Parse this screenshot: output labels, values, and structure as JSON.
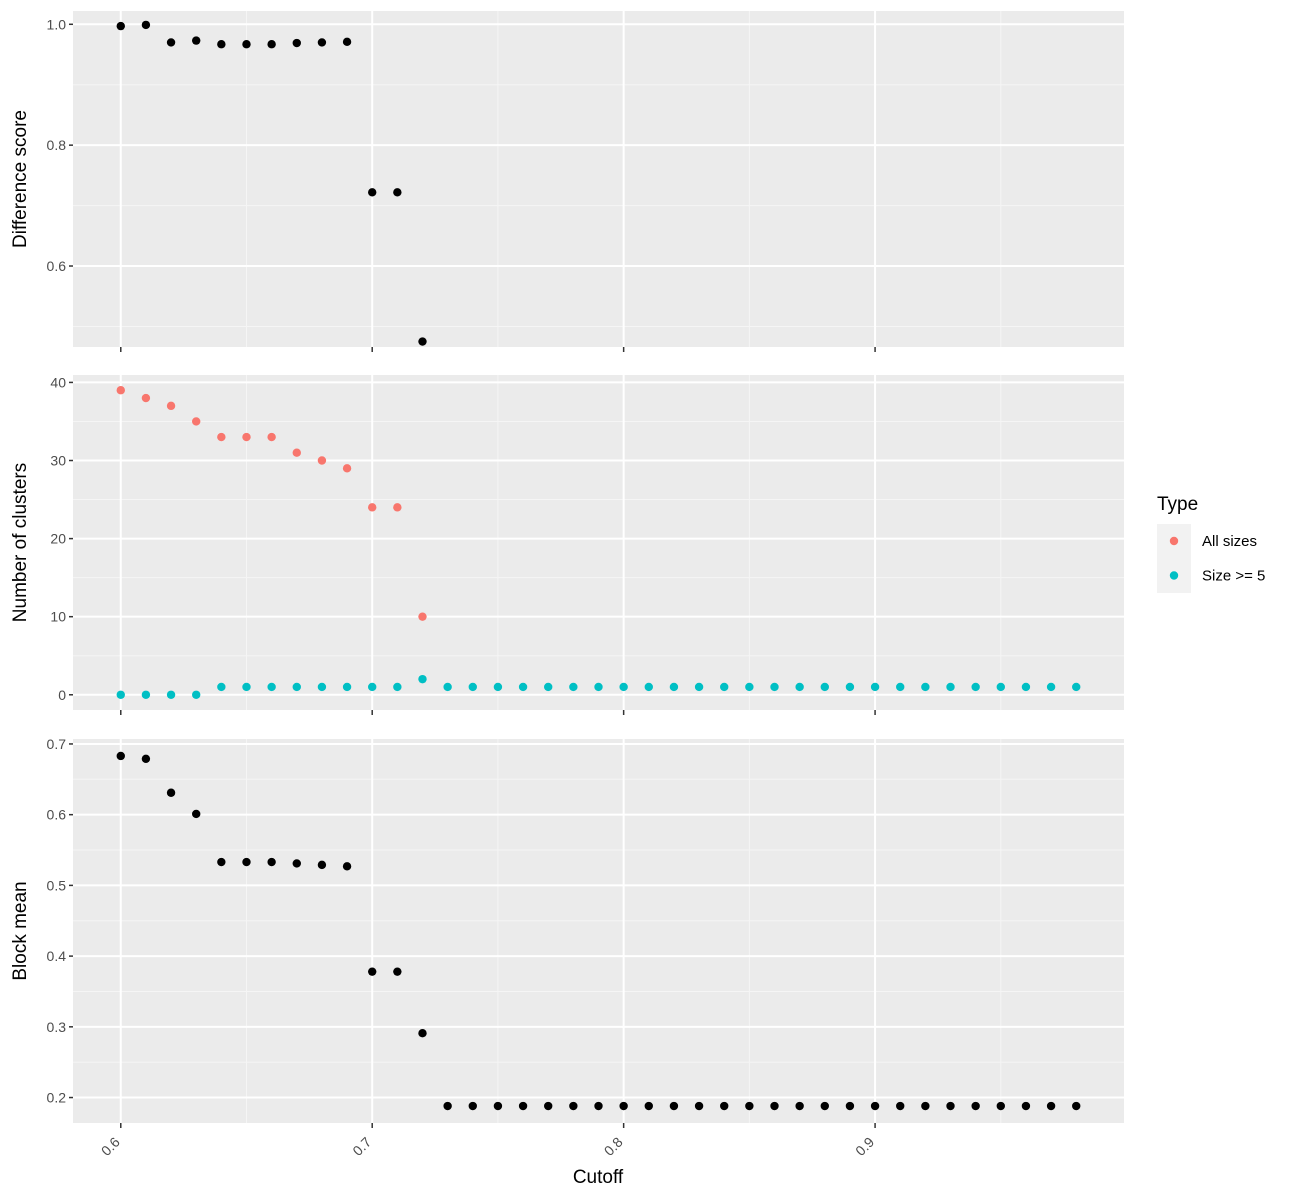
{
  "chart_data": {
    "type": "scatter",
    "xlabel": "Cutoff",
    "xlim": [
      0.581,
      0.999
    ],
    "x_ticks": [
      0.6,
      0.7,
      0.8,
      0.9
    ],
    "x_tick_labels": [
      "0.6",
      "0.7",
      "0.8",
      "0.9"
    ],
    "grid": true,
    "panels": [
      {
        "ylabel": "Difference score",
        "ylim": [
          0.466,
          1.022
        ],
        "y_ticks": [
          0.6,
          0.8,
          1.0
        ],
        "y_tick_labels": [
          "0.6",
          "0.8",
          "1.0"
        ],
        "series": [
          {
            "color": "#000000",
            "x": [
              0.6,
              0.61,
              0.62,
              0.63,
              0.64,
              0.65,
              0.66,
              0.67,
              0.68,
              0.69,
              0.7,
              0.71,
              0.72
            ],
            "y": [
              0.997,
              0.999,
              0.97,
              0.973,
              0.967,
              0.967,
              0.967,
              0.969,
              0.97,
              0.971,
              0.722,
              0.722,
              0.475
            ]
          }
        ]
      },
      {
        "ylabel": "Number of clusters",
        "ylim": [
          -1.95,
          40.95
        ],
        "y_ticks": [
          0,
          10,
          20,
          30,
          40
        ],
        "y_tick_labels": [
          "0",
          "10",
          "20",
          "30",
          "40"
        ],
        "series": [
          {
            "name": "All sizes",
            "color": "#F8766D",
            "x": [
              0.6,
              0.61,
              0.62,
              0.63,
              0.64,
              0.65,
              0.66,
              0.67,
              0.68,
              0.69,
              0.7,
              0.71,
              0.72
            ],
            "y": [
              39,
              38,
              37,
              35,
              33,
              33,
              33,
              31,
              30,
              29,
              24,
              24,
              10
            ]
          },
          {
            "name": "Size >= 5",
            "color": "#00BFC4",
            "x": [
              0.6,
              0.61,
              0.62,
              0.63,
              0.64,
              0.65,
              0.66,
              0.67,
              0.68,
              0.69,
              0.7,
              0.71,
              0.72,
              0.73,
              0.74,
              0.75,
              0.76,
              0.77,
              0.78,
              0.79,
              0.8,
              0.81,
              0.82,
              0.83,
              0.84,
              0.85,
              0.86,
              0.87,
              0.88,
              0.89,
              0.9,
              0.91,
              0.92,
              0.93,
              0.94,
              0.95,
              0.96,
              0.97,
              0.98
            ],
            "y": [
              0,
              0,
              0,
              0,
              1,
              1,
              1,
              1,
              1,
              1,
              1,
              1,
              2,
              1,
              1,
              1,
              1,
              1,
              1,
              1,
              1,
              1,
              1,
              1,
              1,
              1,
              1,
              1,
              1,
              1,
              1,
              1,
              1,
              1,
              1,
              1,
              1,
              1,
              1
            ]
          }
        ]
      },
      {
        "ylabel": "Block mean",
        "ylim": [
          0.164,
          0.707
        ],
        "y_ticks": [
          0.2,
          0.3,
          0.4,
          0.5,
          0.6,
          0.7
        ],
        "y_tick_labels": [
          "0.2",
          "0.3",
          "0.4",
          "0.5",
          "0.6",
          "0.7"
        ],
        "series": [
          {
            "color": "#000000",
            "x": [
              0.6,
              0.61,
              0.62,
              0.63,
              0.64,
              0.65,
              0.66,
              0.67,
              0.68,
              0.69,
              0.7,
              0.71,
              0.72,
              0.73,
              0.74,
              0.75,
              0.76,
              0.77,
              0.78,
              0.79,
              0.8,
              0.81,
              0.82,
              0.83,
              0.84,
              0.85,
              0.86,
              0.87,
              0.88,
              0.89,
              0.9,
              0.91,
              0.92,
              0.93,
              0.94,
              0.95,
              0.96,
              0.97,
              0.98
            ],
            "y": [
              0.683,
              0.679,
              0.631,
              0.601,
              0.533,
              0.533,
              0.533,
              0.531,
              0.529,
              0.527,
              0.378,
              0.378,
              0.291,
              0.188,
              0.188,
              0.188,
              0.188,
              0.188,
              0.188,
              0.188,
              0.188,
              0.188,
              0.188,
              0.188,
              0.188,
              0.188,
              0.188,
              0.188,
              0.188,
              0.188,
              0.188,
              0.188,
              0.188,
              0.188,
              0.188,
              0.188,
              0.188,
              0.188,
              0.188
            ]
          }
        ]
      }
    ],
    "legend": {
      "title": "Type",
      "position": "right",
      "entries": [
        {
          "label": "All sizes",
          "color": "#F8766D"
        },
        {
          "label": "Size >= 5",
          "color": "#00BFC4"
        }
      ]
    }
  }
}
